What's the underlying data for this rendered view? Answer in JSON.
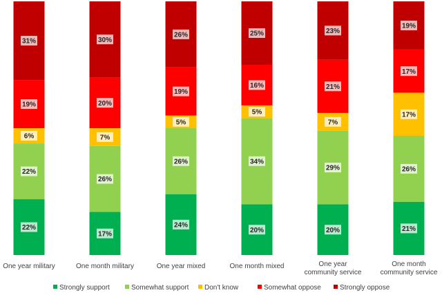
{
  "chart_data": {
    "type": "bar",
    "stacked": true,
    "percent": true,
    "categories": [
      [
        "One year military"
      ],
      [
        "One month military"
      ],
      [
        "One year mixed"
      ],
      [
        "One month mixed"
      ],
      [
        "One year",
        "community service"
      ],
      [
        "One month",
        "community service"
      ]
    ],
    "series": [
      {
        "name": "Strongly support",
        "color": "#00b050",
        "values": [
          22,
          17,
          24,
          20,
          20,
          21
        ],
        "labels": [
          "22%",
          "17%",
          "24%",
          "20%",
          "20%",
          "21%"
        ]
      },
      {
        "name": "Somewhat support",
        "color": "#92d050",
        "values": [
          22,
          26,
          26,
          34,
          29,
          26
        ],
        "labels": [
          "22%",
          "26%",
          "26%",
          "34%",
          "29%",
          "26%"
        ]
      },
      {
        "name": "Don't know",
        "color": "#ffc000",
        "values": [
          6,
          7,
          5,
          5,
          7,
          17
        ],
        "labels": [
          "6%",
          "7%",
          "5%",
          "5%",
          "7%",
          "17%"
        ]
      },
      {
        "name": "Somewhat oppose",
        "color": "#ff0000",
        "values": [
          19,
          20,
          19,
          16,
          21,
          17
        ],
        "labels": [
          "19%",
          "20%",
          "19%",
          "16%",
          "21%",
          "17%"
        ]
      },
      {
        "name": "Strongly oppose",
        "color": "#c00000",
        "values": [
          31,
          30,
          26,
          25,
          23,
          19
        ],
        "labels": [
          "31%",
          "30%",
          "26%",
          "25%",
          "23%",
          "19%"
        ]
      }
    ],
    "legend": "bottom",
    "grid": false
  }
}
